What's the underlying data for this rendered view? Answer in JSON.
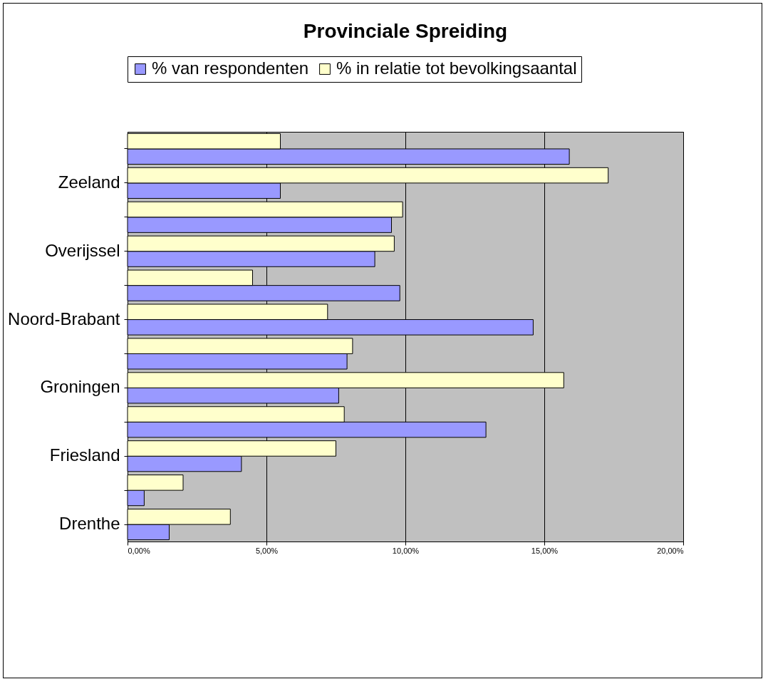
{
  "chart_data": {
    "type": "bar",
    "title": "Provinciale Spreiding",
    "orientation": "horizontal",
    "categories": [
      null,
      "Zeeland",
      null,
      "Overijssel",
      null,
      "Noord-Brabant",
      null,
      "Groningen",
      null,
      "Friesland",
      null,
      "Drenthe"
    ],
    "series": [
      {
        "name": "% van respondenten",
        "color": "#9999ff",
        "values": [
          15.9,
          5.5,
          9.5,
          8.9,
          9.8,
          14.6,
          7.9,
          7.6,
          12.9,
          4.1,
          0.6,
          1.5
        ]
      },
      {
        "name": "% in relatie tot bevolkingsaantal",
        "color": "#ffffcc",
        "values": [
          5.5,
          17.3,
          9.9,
          9.6,
          4.5,
          7.2,
          8.1,
          15.7,
          7.8,
          7.5,
          2.0,
          3.7
        ]
      }
    ],
    "xlim": [
      0,
      20
    ],
    "xticks": [
      {
        "value": 0,
        "label": "0,00%"
      },
      {
        "value": 5,
        "label": "5,00%"
      },
      {
        "value": 10,
        "label": "10,00%"
      },
      {
        "value": 15,
        "label": "15,00%"
      },
      {
        "value": 20,
        "label": "20,00%"
      }
    ],
    "grid": "x",
    "legend": "top"
  }
}
